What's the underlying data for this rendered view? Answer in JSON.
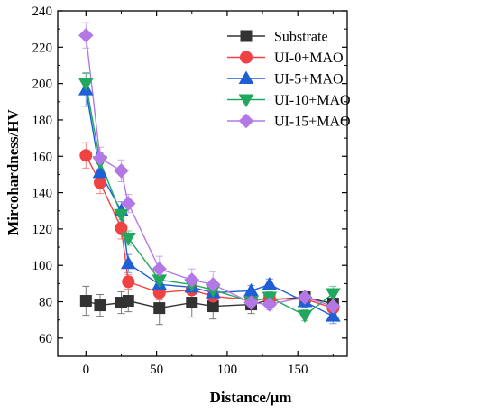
{
  "chart_data": {
    "type": "line",
    "xlabel": "Distance/μm",
    "ylabel": "Mircohardness/HV",
    "xlim": [
      -20,
      185
    ],
    "ylim": [
      50,
      240
    ],
    "xticks": [
      0,
      50,
      100,
      150
    ],
    "yticks": [
      60,
      80,
      100,
      120,
      140,
      160,
      180,
      200,
      220,
      240
    ],
    "xtick_labels": [
      "0",
      "50",
      "100",
      "150"
    ],
    "ytick_labels": [
      "60",
      "80",
      "100",
      "120",
      "140",
      "160",
      "180",
      "200",
      "220",
      "240"
    ],
    "legend_position": "top-right",
    "grid": false,
    "error_bars": true,
    "series": [
      {
        "name": "Substrate",
        "color": "#333333",
        "marker": "square",
        "x": [
          0,
          10,
          25,
          30,
          52,
          75,
          90,
          117,
          130,
          155,
          175
        ],
        "y": [
          80.5,
          78,
          79.5,
          80.5,
          76.5,
          79.5,
          77.5,
          78.5,
          81,
          82.5,
          79
        ],
        "err": [
          8,
          6,
          6,
          6,
          9,
          8,
          7,
          5,
          4,
          4,
          6
        ]
      },
      {
        "name": "UI-0+MAO",
        "color": "#ef4343",
        "marker": "circle",
        "x": [
          0,
          10,
          25,
          30,
          52,
          75,
          90,
          117,
          130,
          155,
          175
        ],
        "y": [
          160.5,
          145.5,
          120.5,
          91,
          85,
          86.5,
          83,
          81,
          81.5,
          81.5,
          76.5
        ],
        "err": [
          7,
          6,
          6,
          4,
          4,
          4,
          4,
          3,
          3,
          3,
          3
        ]
      },
      {
        "name": "UI-5+MAO",
        "color": "#1f5fd6",
        "marker": "triangle-up",
        "x": [
          0,
          10,
          25,
          30,
          52,
          75,
          90,
          117,
          130,
          155,
          175
        ],
        "y": [
          196.5,
          151,
          130,
          101,
          89.5,
          88,
          85,
          86,
          89.5,
          80,
          72
        ],
        "err": [
          9,
          5,
          5,
          5,
          4,
          4,
          3,
          3,
          3,
          3,
          4
        ]
      },
      {
        "name": "UI-10+MAO",
        "color": "#22a85e",
        "marker": "triangle-down",
        "x": [
          0,
          10,
          25,
          30,
          52,
          75,
          90,
          117,
          130,
          155,
          175
        ],
        "y": [
          200,
          157,
          128,
          115,
          92,
          89.5,
          86.5,
          80,
          82.5,
          72.5,
          84.5
        ],
        "err": [
          6,
          5,
          4,
          4,
          4,
          4,
          3,
          3,
          3,
          3,
          4
        ]
      },
      {
        "name": "UI-15+MAO",
        "color": "#b478e6",
        "marker": "diamond",
        "x": [
          0,
          10,
          25,
          30,
          52,
          75,
          90,
          117,
          130,
          155,
          175
        ],
        "y": [
          226.5,
          159,
          152,
          134,
          98,
          92,
          89.5,
          79.5,
          78.5,
          82.5,
          77.5
        ],
        "err": [
          7,
          6,
          6,
          5,
          7,
          6,
          7,
          4,
          3,
          3,
          4
        ]
      }
    ]
  }
}
